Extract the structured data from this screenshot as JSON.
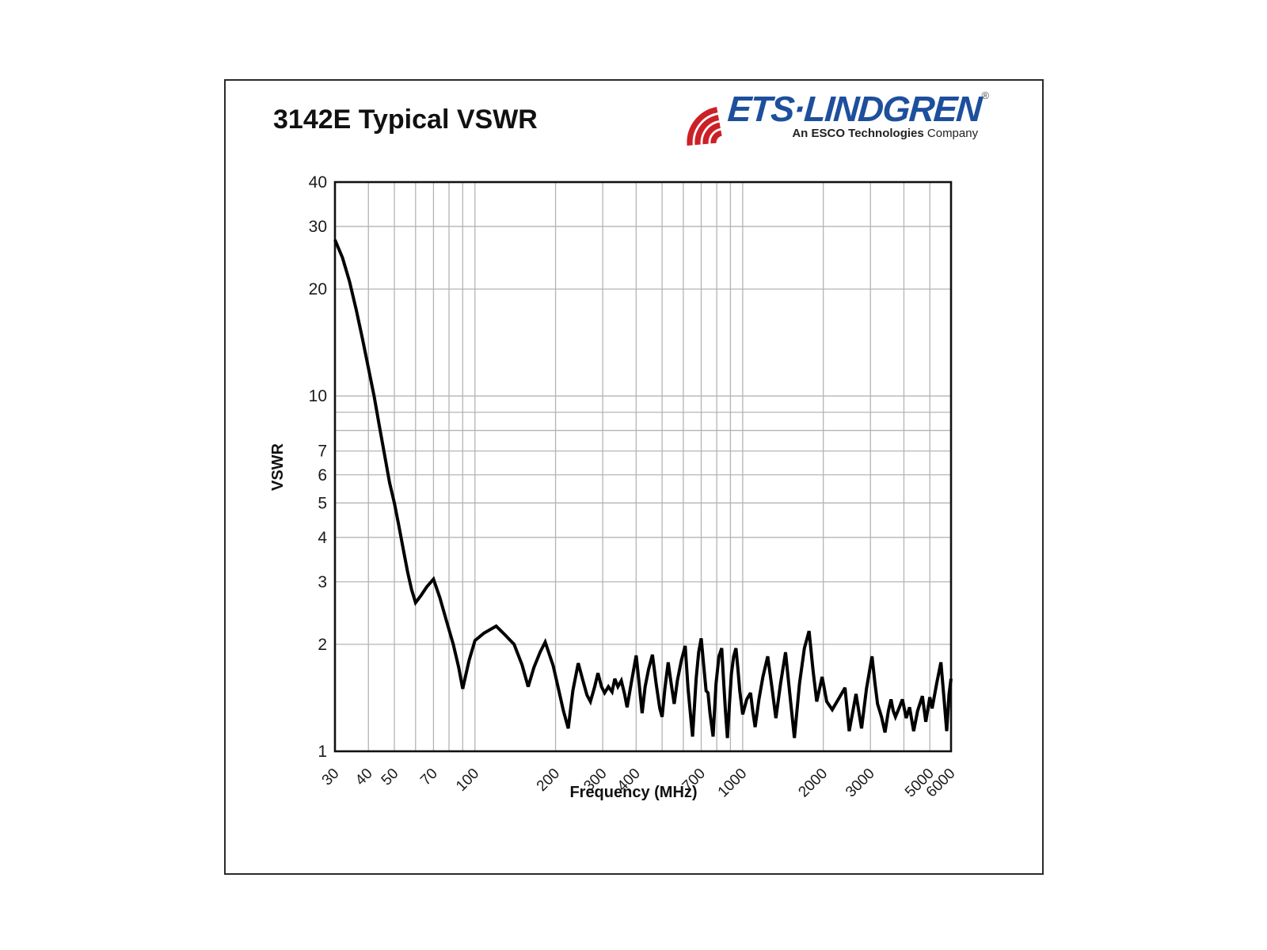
{
  "page": {
    "title": "3142E Typical VSWR"
  },
  "logo": {
    "wordmark": "ETS·LINDGREN",
    "registered": "®",
    "subtitle_bold": "An ESCO Technologies",
    "subtitle_regular": "Company",
    "colors": {
      "blue": "#1d4f9c",
      "red": "#cc2027"
    }
  },
  "chart_data": {
    "type": "line",
    "title": "3142E Typical VSWR",
    "xlabel": "Frequency (MHz)",
    "ylabel": "VSWR",
    "x_scale": "log",
    "y_scale": "log",
    "xlim": [
      30,
      6000
    ],
    "ylim": [
      1,
      40
    ],
    "grid": true,
    "legend": false,
    "line_color": "#000000",
    "grid_color": "#b4b4b4",
    "frame_color": "#111111",
    "x_tick_labels": [
      30,
      40,
      50,
      70,
      100,
      200,
      300,
      400,
      700,
      1000,
      2000,
      3000,
      5000,
      6000
    ],
    "y_tick_labels": [
      40,
      30,
      20,
      10,
      7,
      6,
      5,
      4,
      3,
      2,
      1
    ],
    "x_gridlines": [
      40,
      50,
      60,
      70,
      80,
      90,
      100,
      200,
      300,
      400,
      500,
      600,
      700,
      800,
      900,
      1000,
      2000,
      3000,
      4000,
      5000
    ],
    "y_gridlines": [
      2,
      3,
      4,
      5,
      6,
      7,
      8,
      9,
      10,
      20,
      30
    ],
    "series": [
      {
        "name": "Typical VSWR",
        "points": [
          [
            30,
            27.5
          ],
          [
            32,
            24.5
          ],
          [
            34,
            21
          ],
          [
            36,
            17.5
          ],
          [
            38,
            14.5
          ],
          [
            40,
            12
          ],
          [
            42,
            10
          ],
          [
            44,
            8.2
          ],
          [
            46,
            6.8
          ],
          [
            48,
            5.7
          ],
          [
            50,
            5.0
          ],
          [
            52,
            4.3
          ],
          [
            54,
            3.7
          ],
          [
            56,
            3.2
          ],
          [
            58,
            2.85
          ],
          [
            60,
            2.62
          ],
          [
            63,
            2.75
          ],
          [
            66,
            2.9
          ],
          [
            70,
            3.05
          ],
          [
            74,
            2.7
          ],
          [
            78,
            2.35
          ],
          [
            83,
            2.0
          ],
          [
            87,
            1.72
          ],
          [
            90,
            1.5
          ],
          [
            95,
            1.8
          ],
          [
            100,
            2.05
          ],
          [
            108,
            2.15
          ],
          [
            120,
            2.25
          ],
          [
            130,
            2.12
          ],
          [
            140,
            2.0
          ],
          [
            150,
            1.75
          ],
          [
            158,
            1.52
          ],
          [
            166,
            1.72
          ],
          [
            175,
            1.9
          ],
          [
            183,
            2.03
          ],
          [
            196,
            1.74
          ],
          [
            205,
            1.5
          ],
          [
            214,
            1.3
          ],
          [
            223,
            1.16
          ],
          [
            232,
            1.48
          ],
          [
            243,
            1.77
          ],
          [
            252,
            1.6
          ],
          [
            262,
            1.44
          ],
          [
            270,
            1.38
          ],
          [
            280,
            1.52
          ],
          [
            288,
            1.66
          ],
          [
            297,
            1.52
          ],
          [
            305,
            1.46
          ],
          [
            315,
            1.52
          ],
          [
            325,
            1.47
          ],
          [
            333,
            1.6
          ],
          [
            342,
            1.52
          ],
          [
            352,
            1.58
          ],
          [
            362,
            1.45
          ],
          [
            370,
            1.33
          ],
          [
            385,
            1.58
          ],
          [
            400,
            1.86
          ],
          [
            410,
            1.56
          ],
          [
            421,
            1.28
          ],
          [
            432,
            1.52
          ],
          [
            445,
            1.7
          ],
          [
            460,
            1.87
          ],
          [
            475,
            1.55
          ],
          [
            490,
            1.32
          ],
          [
            500,
            1.25
          ],
          [
            512,
            1.5
          ],
          [
            527,
            1.78
          ],
          [
            540,
            1.56
          ],
          [
            555,
            1.36
          ],
          [
            570,
            1.58
          ],
          [
            590,
            1.8
          ],
          [
            610,
            1.98
          ],
          [
            625,
            1.5
          ],
          [
            650,
            1.1
          ],
          [
            670,
            1.6
          ],
          [
            685,
            1.9
          ],
          [
            700,
            2.08
          ],
          [
            715,
            1.75
          ],
          [
            730,
            1.48
          ],
          [
            742,
            1.46
          ],
          [
            755,
            1.28
          ],
          [
            775,
            1.1
          ],
          [
            795,
            1.55
          ],
          [
            815,
            1.85
          ],
          [
            835,
            1.95
          ],
          [
            850,
            1.55
          ],
          [
            862,
            1.3
          ],
          [
            877,
            1.09
          ],
          [
            892,
            1.35
          ],
          [
            907,
            1.65
          ],
          [
            925,
            1.85
          ],
          [
            944,
            1.95
          ],
          [
            960,
            1.7
          ],
          [
            975,
            1.48
          ],
          [
            1000,
            1.27
          ],
          [
            1035,
            1.4
          ],
          [
            1070,
            1.46
          ],
          [
            1090,
            1.3
          ],
          [
            1113,
            1.17
          ],
          [
            1150,
            1.4
          ],
          [
            1190,
            1.62
          ],
          [
            1240,
            1.85
          ],
          [
            1285,
            1.52
          ],
          [
            1330,
            1.24
          ],
          [
            1385,
            1.55
          ],
          [
            1445,
            1.9
          ],
          [
            1500,
            1.45
          ],
          [
            1560,
            1.09
          ],
          [
            1630,
            1.55
          ],
          [
            1700,
            1.95
          ],
          [
            1770,
            2.18
          ],
          [
            1830,
            1.7
          ],
          [
            1890,
            1.38
          ],
          [
            1980,
            1.62
          ],
          [
            2060,
            1.38
          ],
          [
            2160,
            1.31
          ],
          [
            2300,
            1.42
          ],
          [
            2410,
            1.51
          ],
          [
            2500,
            1.14
          ],
          [
            2650,
            1.45
          ],
          [
            2780,
            1.16
          ],
          [
            2900,
            1.5
          ],
          [
            3040,
            1.85
          ],
          [
            3120,
            1.55
          ],
          [
            3190,
            1.36
          ],
          [
            3300,
            1.25
          ],
          [
            3400,
            1.13
          ],
          [
            3500,
            1.3
          ],
          [
            3580,
            1.4
          ],
          [
            3650,
            1.3
          ],
          [
            3720,
            1.25
          ],
          [
            3850,
            1.33
          ],
          [
            3950,
            1.4
          ],
          [
            4080,
            1.24
          ],
          [
            4200,
            1.33
          ],
          [
            4350,
            1.14
          ],
          [
            4500,
            1.3
          ],
          [
            4690,
            1.43
          ],
          [
            4830,
            1.21
          ],
          [
            5000,
            1.42
          ],
          [
            5100,
            1.32
          ],
          [
            5300,
            1.55
          ],
          [
            5500,
            1.78
          ],
          [
            5670,
            1.36
          ],
          [
            5780,
            1.14
          ],
          [
            5900,
            1.45
          ],
          [
            6000,
            1.6
          ]
        ]
      }
    ]
  }
}
